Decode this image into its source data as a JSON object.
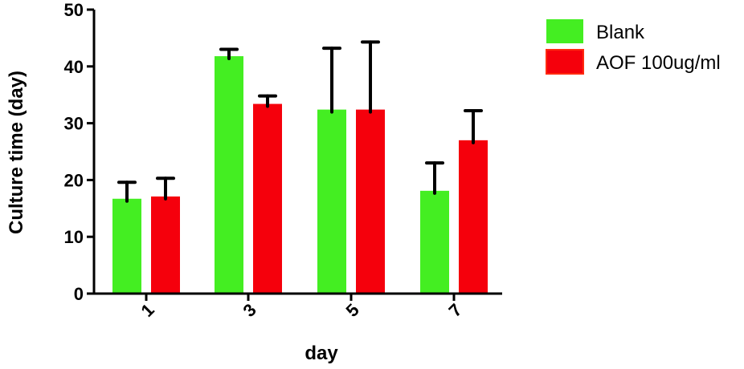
{
  "chart_data": {
    "type": "bar",
    "title": "",
    "xlabel": "day",
    "ylabel": "Culture time (day)",
    "categories": [
      "1",
      "3",
      "5",
      "7"
    ],
    "ylim": [
      0,
      50
    ],
    "yticks": [
      "0",
      "10",
      "20",
      "30",
      "40",
      "50"
    ],
    "series": [
      {
        "name": "Blank",
        "color": "#44ee22",
        "values": [
          16.7,
          41.8,
          32.4,
          18.1
        ],
        "error_upper": [
          19.6,
          43.0,
          43.2,
          23.0
        ]
      },
      {
        "name": "AOF 100ug/ml",
        "color": "#f5000c",
        "values": [
          17.1,
          33.4,
          32.4,
          27.0
        ],
        "error_upper": [
          20.3,
          34.8,
          44.3,
          32.2
        ]
      }
    ],
    "legend": "top-right"
  }
}
